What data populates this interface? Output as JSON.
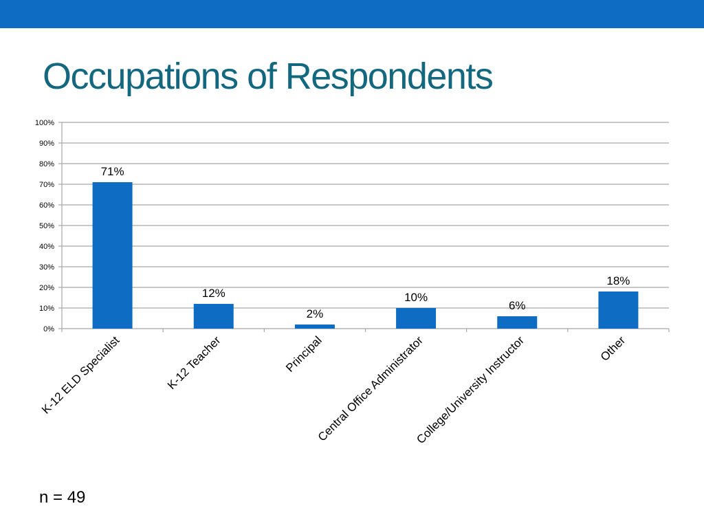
{
  "slide": {
    "title": "Occupations of Respondents",
    "footnote": "n = 49",
    "header_color": "#0E6DC3",
    "title_color": "#13677F"
  },
  "chart_data": {
    "type": "bar",
    "categories": [
      "K-12 ELD Specialist",
      "K-12 Teacher",
      "Principal",
      "Central Office Administrator",
      "College/University Instructor",
      "Other"
    ],
    "values": [
      71,
      12,
      2,
      10,
      6,
      18
    ],
    "data_labels": [
      "71%",
      "12%",
      "2%",
      "10%",
      "6%",
      "18%"
    ],
    "ylim": [
      0,
      100
    ],
    "yticks": [
      "0%",
      "10%",
      "20%",
      "30%",
      "40%",
      "50%",
      "60%",
      "70%",
      "80%",
      "90%",
      "100%"
    ],
    "grid": true,
    "bar_color": "#0E6DC3",
    "grid_color": "#A6A6A6"
  }
}
